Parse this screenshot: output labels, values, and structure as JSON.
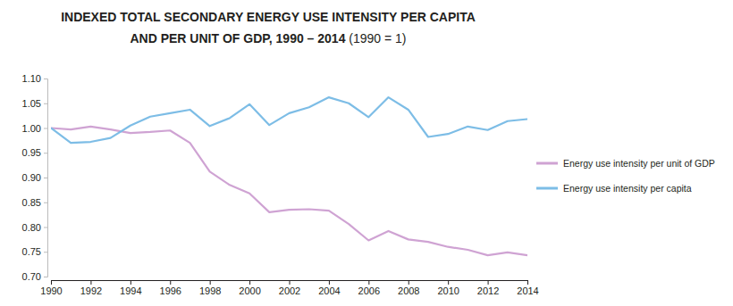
{
  "chart_data": {
    "type": "line",
    "title": [
      "INDEXED TOTAL SECONDARY ENERGY USE INTENSITY PER CAPITA",
      "AND PER UNIT OF GDP, 1990 – 2014"
    ],
    "subtitle": "(1990 = 1)",
    "x": [
      1990,
      1991,
      1992,
      1993,
      1994,
      1995,
      1996,
      1997,
      1998,
      1999,
      2000,
      2001,
      2002,
      2003,
      2004,
      2005,
      2006,
      2007,
      2008,
      2009,
      2010,
      2011,
      2012,
      2013,
      2014
    ],
    "series": [
      {
        "name": "Energy use intensity per unit of GDP",
        "color": "#cfa3d3",
        "values": [
          1.0,
          0.997,
          1.003,
          0.997,
          0.99,
          0.992,
          0.995,
          0.97,
          0.912,
          0.885,
          0.868,
          0.83,
          0.835,
          0.836,
          0.833,
          0.806,
          0.773,
          0.792,
          0.775,
          0.77,
          0.76,
          0.754,
          0.743,
          0.749,
          0.743
        ]
      },
      {
        "name": "Energy use intensity per capita",
        "color": "#7dbde6",
        "values": [
          1.0,
          0.97,
          0.972,
          0.98,
          1.005,
          1.023,
          1.03,
          1.037,
          1.004,
          1.02,
          1.048,
          1.006,
          1.03,
          1.042,
          1.062,
          1.05,
          1.022,
          1.062,
          1.037,
          0.982,
          0.988,
          1.003,
          0.996,
          1.014,
          1.018
        ]
      }
    ],
    "xlim": [
      1990,
      2014
    ],
    "xticks": [
      1990,
      1992,
      1994,
      1996,
      1998,
      2000,
      2002,
      2004,
      2006,
      2008,
      2010,
      2012,
      2014
    ],
    "ylim": [
      0.7,
      1.1
    ],
    "yticks": [
      {
        "value": 0.7,
        "label": "0.70"
      },
      {
        "value": 0.75,
        "label": "0.75"
      },
      {
        "value": 0.8,
        "label": "0.80"
      },
      {
        "value": 0.85,
        "label": "0.85"
      },
      {
        "value": 0.9,
        "label": "0.90"
      },
      {
        "value": 0.95,
        "label": "0.95"
      },
      {
        "value": 1.0,
        "label": "1.00"
      },
      {
        "value": 1.05,
        "label": "1.05"
      },
      {
        "value": 1.1,
        "label": "1.10"
      }
    ],
    "grid": false,
    "legend": "right"
  }
}
